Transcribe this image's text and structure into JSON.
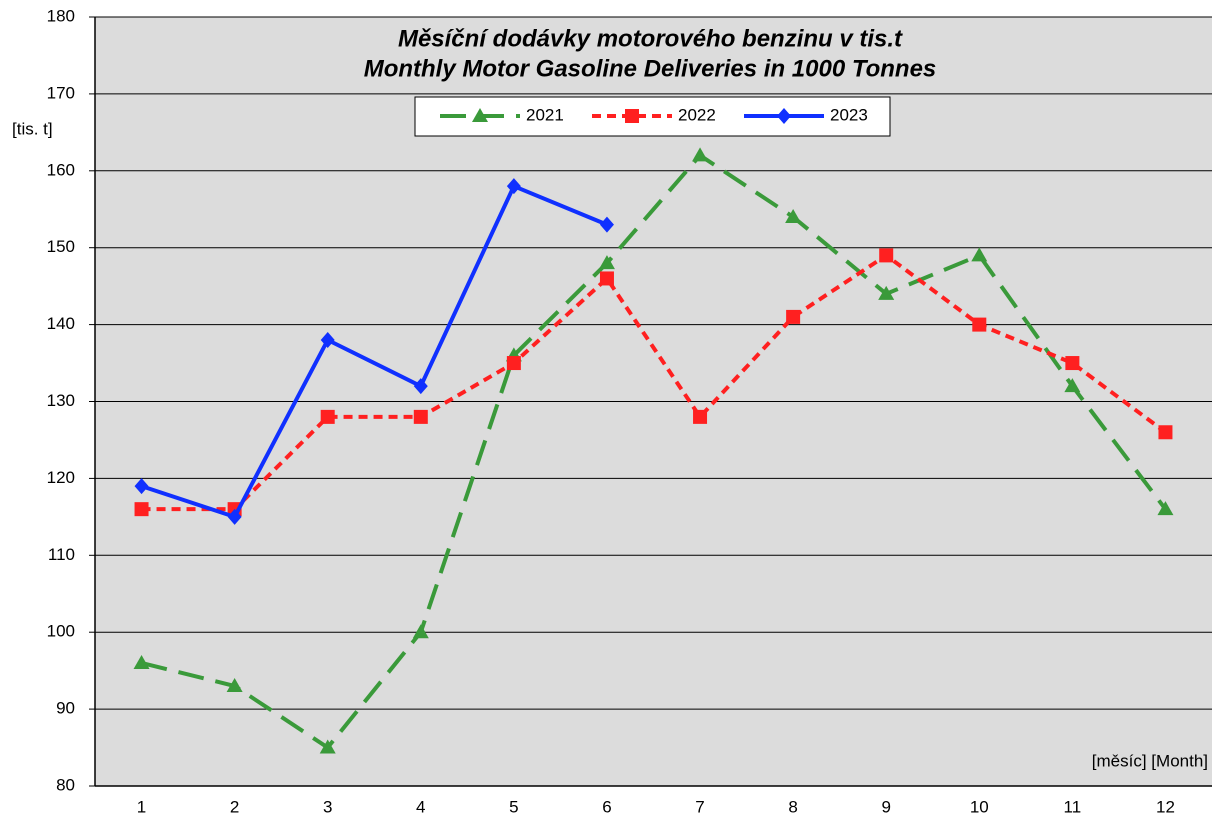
{
  "chart_data": {
    "type": "line",
    "title": "Měsíční dodávky motorového benzinu v tis.t",
    "subtitle": "Monthly Motor Gasoline Deliveries in 1000 Tonnes",
    "y_label": "[tis. t]",
    "x_label": "[měsíc] [Month]",
    "categories": [
      "1",
      "2",
      "3",
      "4",
      "5",
      "6",
      "7",
      "8",
      "9",
      "10",
      "11",
      "12"
    ],
    "series": [
      {
        "name": "2021",
        "color": "#3a9a3a",
        "linestyle": "long-dash",
        "marker": "triangle",
        "values": [
          96,
          93,
          85,
          100,
          136,
          148,
          162,
          154,
          144,
          149,
          132,
          116
        ]
      },
      {
        "name": "2022",
        "color": "#ff2020",
        "linestyle": "short-dash",
        "marker": "square",
        "values": [
          116,
          116,
          128,
          128,
          135,
          146,
          128,
          141,
          149,
          140,
          135,
          126
        ]
      },
      {
        "name": "2023",
        "color": "#1030ff",
        "linestyle": "solid",
        "marker": "diamond",
        "values": [
          119,
          115,
          138,
          132,
          158,
          153,
          null,
          null,
          null,
          null,
          null,
          null
        ]
      }
    ],
    "ylim": [
      80,
      180
    ],
    "yticks": [
      80,
      90,
      100,
      110,
      120,
      130,
      140,
      150,
      160,
      170,
      180
    ],
    "grid": true,
    "legend": "top"
  }
}
